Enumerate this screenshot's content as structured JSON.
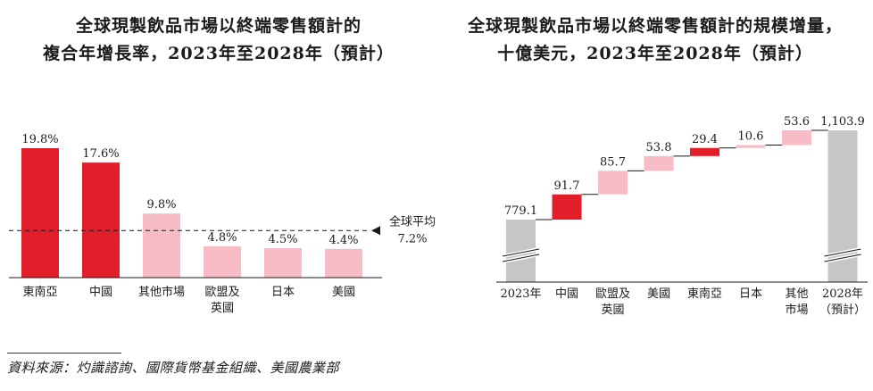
{
  "colors": {
    "strong": "#e31e2b",
    "light": "#f7bcc5",
    "gray": "#c6c6c6",
    "axis": "#1a1a1a"
  },
  "left": {
    "title_line1": "全球現製飲品市場以終端零售額計的",
    "title_line2": "複合年增長率，2023年至2028年（預計）",
    "avg_label_line1": "全球平均",
    "avg_label_line2": "7.2%"
  },
  "right": {
    "title_line1": "全球現製飲品市場以終端零售額計的規模增量，",
    "title_line2": "十億美元，2023年至2028年（預計）"
  },
  "source": "資料來源：灼識諮詢、國際貨幣基金組織、美國農業部",
  "chart_data": [
    {
      "type": "bar",
      "title": "全球現製飲品市場以終端零售額計的 複合年增長率，2023年至2028年（預計）",
      "categories": [
        [
          "東南亞"
        ],
        [
          "中國"
        ],
        [
          "其他市場"
        ],
        [
          "歐盟及",
          "英國"
        ],
        [
          "日本"
        ],
        [
          "美國"
        ]
      ],
      "values": [
        19.8,
        17.6,
        9.8,
        4.8,
        4.5,
        4.4
      ],
      "value_labels": [
        "19.8%",
        "17.6%",
        "9.8%",
        "4.8%",
        "4.5%",
        "4.4%"
      ],
      "colors": [
        "strong",
        "strong",
        "light",
        "light",
        "light",
        "light"
      ],
      "reference_line": {
        "value": 7.2,
        "label": "全球平均 7.2%"
      },
      "ylim": [
        0,
        22
      ],
      "grid": false,
      "legend": "none"
    },
    {
      "type": "bar",
      "subtype": "waterfall",
      "title": "全球現製飲品市場以終端零售額計的規模增量， 十億美元，2023年至2028年（預計）",
      "categories": [
        [
          "2023年"
        ],
        [
          "中國"
        ],
        [
          "歐盟及",
          "英國"
        ],
        [
          "美國"
        ],
        [
          "東南亞"
        ],
        [
          "日本"
        ],
        [
          "其他",
          "市場"
        ],
        [
          "2028年",
          "（預計）"
        ]
      ],
      "values": [
        779.1,
        91.7,
        85.7,
        53.8,
        29.4,
        10.6,
        53.6,
        1103.9
      ],
      "value_labels": [
        "779.1",
        "91.7",
        "85.7",
        "53.8",
        "29.4",
        "10.6",
        "53.6",
        "1,103.9"
      ],
      "kinds": [
        "total",
        "increment",
        "increment",
        "increment",
        "increment",
        "increment",
        "increment",
        "total"
      ],
      "colors": [
        "gray",
        "strong",
        "light",
        "light",
        "strong",
        "light",
        "light",
        "gray"
      ],
      "axis_break": true,
      "grid": false,
      "legend": "none"
    }
  ]
}
